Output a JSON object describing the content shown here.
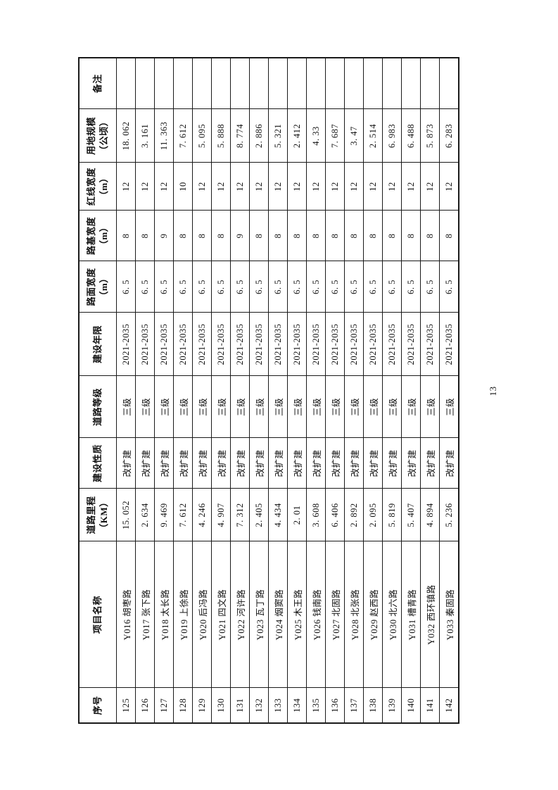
{
  "page": {
    "number": "13"
  },
  "table": {
    "headers": [
      "序号",
      "项目名称",
      "道路里程\n（KM）",
      "建设性质",
      "道路等级",
      "建设年限",
      "路面宽度\n（m）",
      "路基宽度\n（m）",
      "红线宽度\n（m）",
      "用地规模\n（公顷）",
      "备注"
    ],
    "rows": [
      [
        "125",
        "Y016 胡枣路",
        "15. 052",
        "改扩建",
        "三级",
        "2021-2035",
        "6. 5",
        "8",
        "12",
        "18. 062",
        ""
      ],
      [
        "126",
        "Y017 张下路",
        "2. 634",
        "改扩建",
        "三级",
        "2021-2035",
        "6. 5",
        "8",
        "12",
        "3. 161",
        ""
      ],
      [
        "127",
        "Y018 太长路",
        "9. 469",
        "改扩建",
        "三级",
        "2021-2035",
        "6. 5",
        "9",
        "12",
        "11. 363",
        ""
      ],
      [
        "128",
        "Y019 上徐路",
        "7. 612",
        "改扩建",
        "三级",
        "2021-2035",
        "6. 5",
        "8",
        "10",
        "7. 612",
        ""
      ],
      [
        "129",
        "Y020 后冯路",
        "4. 246",
        "改扩建",
        "三级",
        "2021-2035",
        "6. 5",
        "8",
        "12",
        "5. 095",
        ""
      ],
      [
        "130",
        "Y021 四文路",
        "4. 907",
        "改扩建",
        "三级",
        "2021-2035",
        "6. 5",
        "8",
        "12",
        "5. 888",
        ""
      ],
      [
        "131",
        "Y022 河许路",
        "7. 312",
        "改扩建",
        "三级",
        "2021-2035",
        "6. 5",
        "9",
        "12",
        "8. 774",
        ""
      ],
      [
        "132",
        "Y023 瓦丁路",
        "2. 405",
        "改扩建",
        "三级",
        "2021-2035",
        "6. 5",
        "8",
        "12",
        "2. 886",
        ""
      ],
      [
        "133",
        "Y024 烟窦路",
        "4. 434",
        "改扩建",
        "三级",
        "2021-2035",
        "6. 5",
        "8",
        "12",
        "5. 321",
        ""
      ],
      [
        "134",
        "Y025 木王路",
        "2. 01",
        "改扩建",
        "三级",
        "2021-2035",
        "6. 5",
        "8",
        "12",
        "2. 412",
        ""
      ],
      [
        "135",
        "Y026 钱南路",
        "3. 608",
        "改扩建",
        "三级",
        "2021-2035",
        "6. 5",
        "8",
        "12",
        "4. 33",
        ""
      ],
      [
        "136",
        "Y027 北固路",
        "6. 406",
        "改扩建",
        "三级",
        "2021-2035",
        "6. 5",
        "8",
        "12",
        "7. 687",
        ""
      ],
      [
        "137",
        "Y028 北张路",
        "2. 892",
        "改扩建",
        "三级",
        "2021-2035",
        "6. 5",
        "8",
        "12",
        "3. 47",
        ""
      ],
      [
        "138",
        "Y029 赵西路",
        "2. 095",
        "改扩建",
        "三级",
        "2021-2035",
        "6. 5",
        "8",
        "12",
        "2. 514",
        ""
      ],
      [
        "139",
        "Y030 北六路",
        "5. 819",
        "改扩建",
        "三级",
        "2021-2035",
        "6. 5",
        "8",
        "12",
        "6. 983",
        ""
      ],
      [
        "140",
        "Y031 槽青路",
        "5. 407",
        "改扩建",
        "三级",
        "2021-2035",
        "6. 5",
        "8",
        "12",
        "6. 488",
        ""
      ],
      [
        "141",
        "Y032 西环镇路",
        "4. 894",
        "改扩建",
        "三级",
        "2021-2035",
        "6. 5",
        "8",
        "12",
        "5. 873",
        ""
      ],
      [
        "142",
        "Y033 秦固路",
        "5. 236",
        "改扩建",
        "三级",
        "2021-2035",
        "6. 5",
        "8",
        "12",
        "6. 283",
        ""
      ]
    ]
  }
}
